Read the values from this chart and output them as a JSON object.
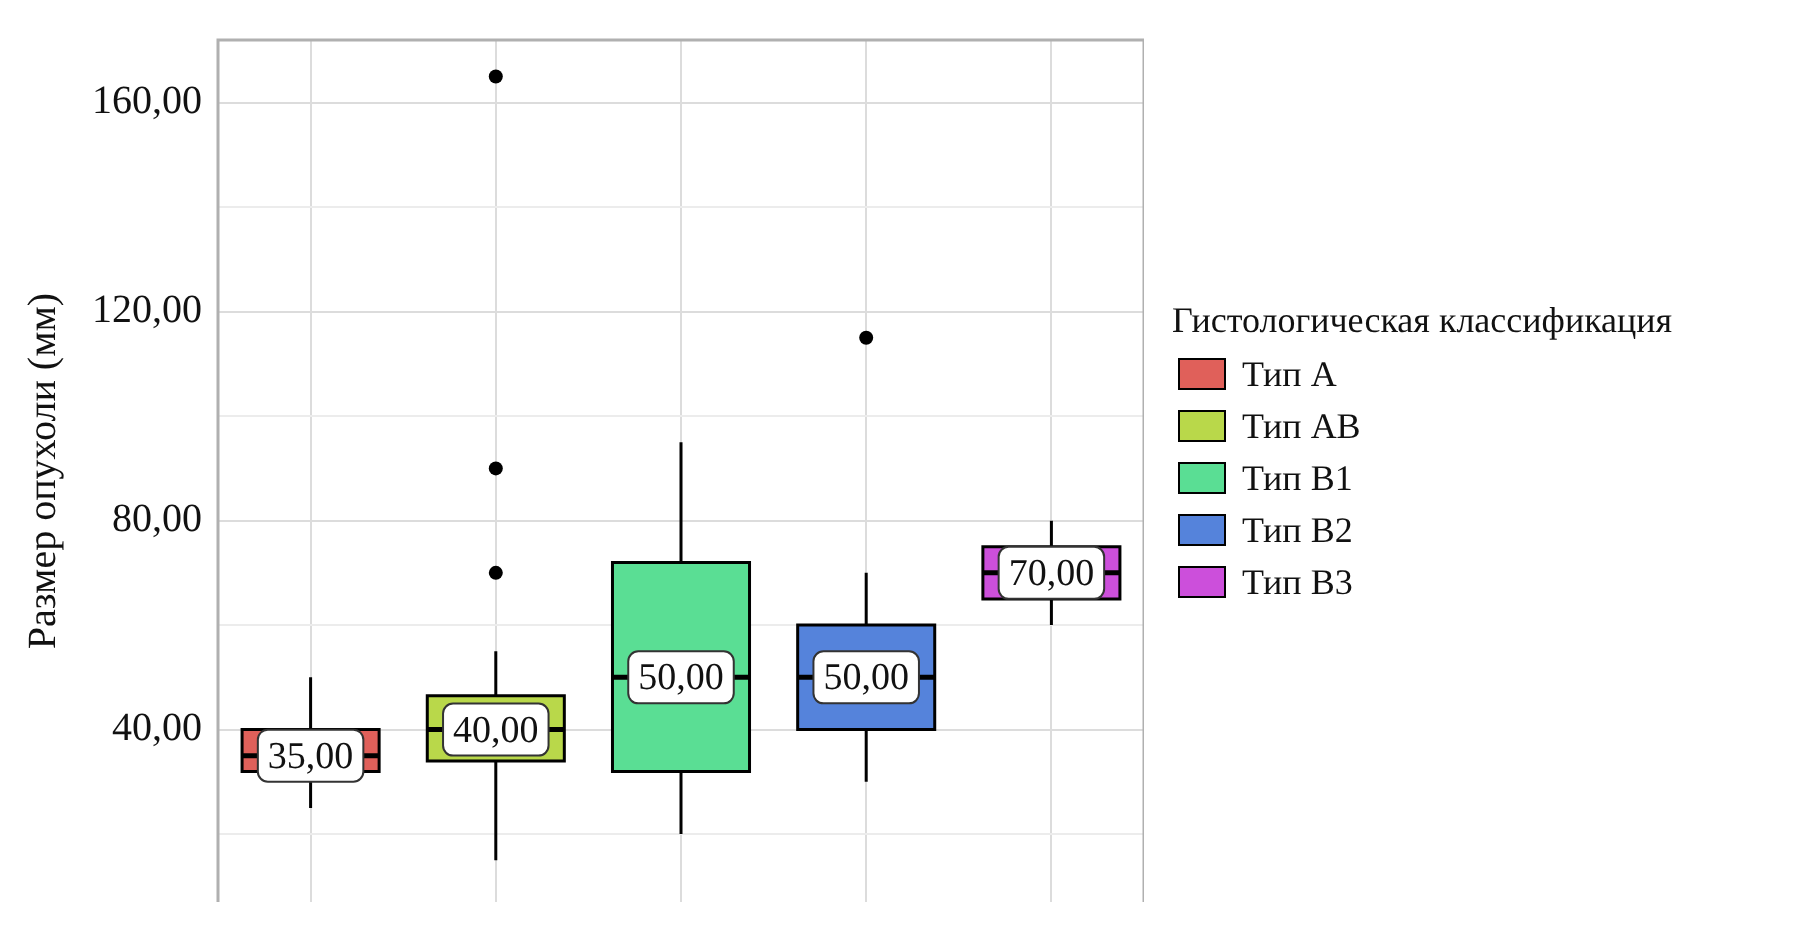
{
  "chart_data": {
    "type": "box",
    "ylabel": "Размер опухоли (мм)",
    "legend_title": "Гистологическая классификация",
    "categories": [
      null,
      null,
      null,
      null,
      null
    ],
    "ylim": [
      7,
      172
    ],
    "yticks": [
      {
        "value": 20,
        "label": null
      },
      {
        "value": 40,
        "label": "40,00"
      },
      {
        "value": 60,
        "label": null
      },
      {
        "value": 80,
        "label": "80,00"
      },
      {
        "value": 100,
        "label": null
      },
      {
        "value": 120,
        "label": "120,00"
      },
      {
        "value": 140,
        "label": null
      },
      {
        "value": 160,
        "label": "160,00"
      }
    ],
    "grid": true,
    "legend": "right",
    "data_labels": true,
    "tick_labels": "y",
    "series": [
      {
        "name": "Тип A",
        "color": "#e0605a",
        "boxes": [
          {
            "low": 25,
            "q1": 32,
            "median": 35,
            "q3": 40,
            "high": 50
          },
          null,
          null,
          null,
          null
        ],
        "value_labels": [
          "35,00",
          null,
          null,
          null,
          null
        ]
      },
      {
        "name": "Тип AB",
        "color": "#b9d84a",
        "boxes": [
          null,
          {
            "low": 15,
            "q1": 34,
            "median": 40,
            "q3": 46.5,
            "high": 55,
            "outliers": [
              70,
              90,
              165
            ]
          },
          null,
          null,
          null
        ],
        "value_labels": [
          null,
          "40,00",
          null,
          null,
          null
        ]
      },
      {
        "name": "Тип B1",
        "color": "#5ade94",
        "boxes": [
          null,
          null,
          {
            "low": 20,
            "q1": 32,
            "median": 50,
            "q3": 72,
            "high": 95
          },
          null,
          null
        ],
        "value_labels": [
          null,
          null,
          "50,00",
          null,
          null
        ]
      },
      {
        "name": "Тип B2",
        "color": "#5583db",
        "boxes": [
          null,
          null,
          null,
          {
            "low": 30,
            "q1": 40,
            "median": 50,
            "q3": 60,
            "high": 70,
            "outliers": [
              115
            ]
          },
          null
        ],
        "value_labels": [
          null,
          null,
          null,
          "50,00",
          null
        ]
      },
      {
        "name": "Тип B3",
        "color": "#cc4fdb",
        "boxes": [
          null,
          null,
          null,
          null,
          {
            "low": 60,
            "q1": 65,
            "median": 70,
            "q3": 75,
            "high": 80
          }
        ],
        "value_labels": [
          null,
          null,
          null,
          null,
          "70,00"
        ]
      }
    ]
  }
}
